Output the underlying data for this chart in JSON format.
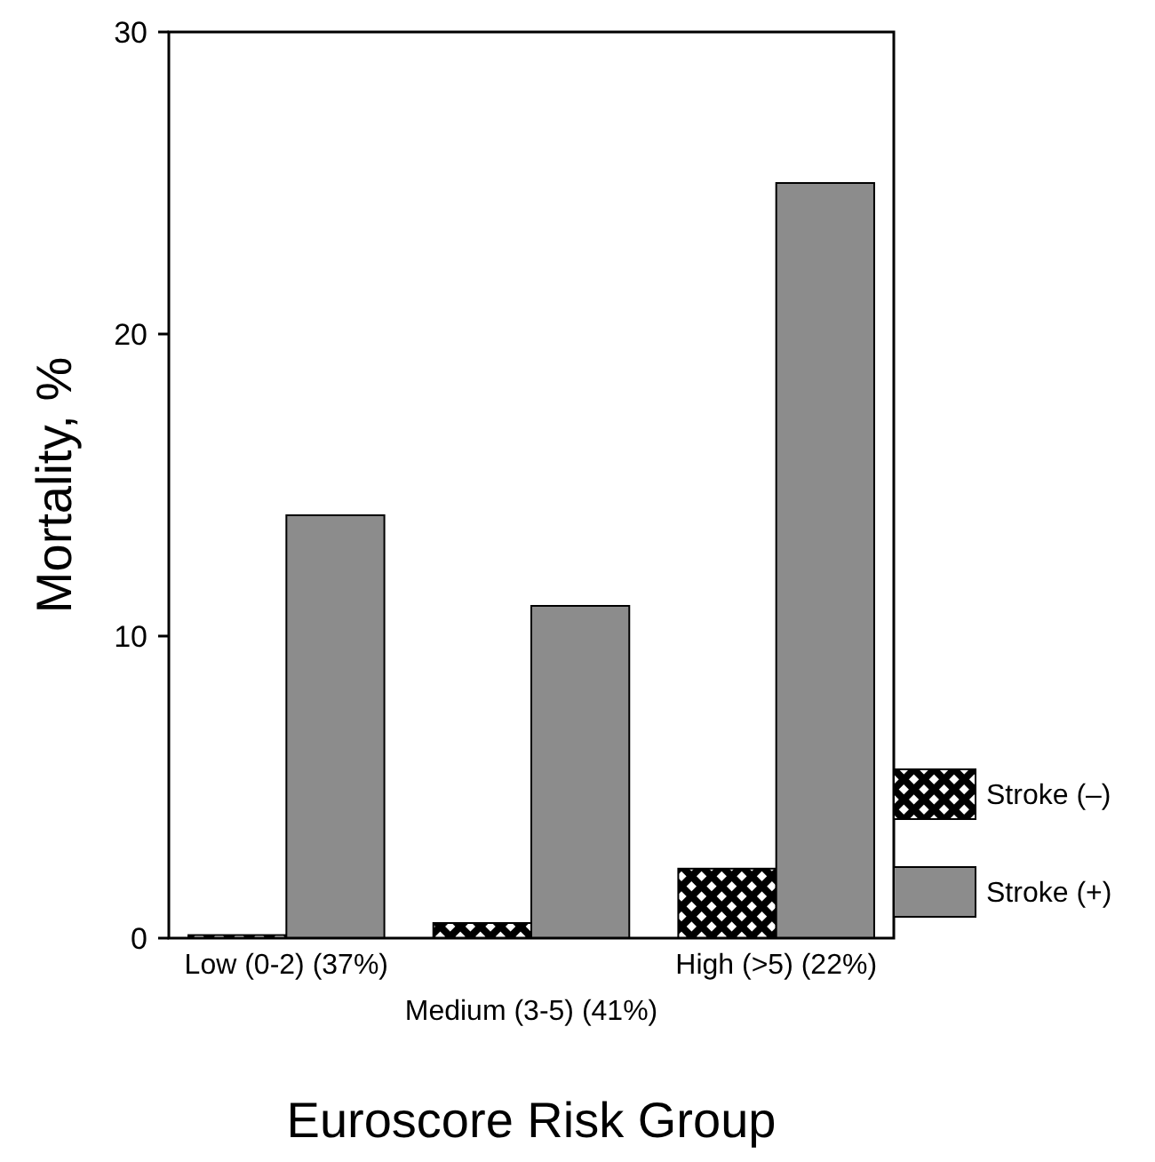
{
  "chart_data": {
    "type": "bar",
    "xlabel": "Euroscore Risk Group",
    "ylabel": "Mortality, %",
    "categories": [
      "Low (0-2) (37%)",
      "Medium (3-5) (41%)",
      "High (>5) (22%)"
    ],
    "series": [
      {
        "name": "Stroke (–)",
        "color": "#000000",
        "values": [
          0.1,
          0.5,
          2.3
        ]
      },
      {
        "name": "Stroke (+)",
        "color": "#8c8c8c",
        "values": [
          14,
          11,
          25
        ]
      }
    ],
    "ylim": [
      0,
      30
    ],
    "yticks": [
      0,
      10,
      20,
      30
    ],
    "grid": false,
    "legend": "right"
  }
}
